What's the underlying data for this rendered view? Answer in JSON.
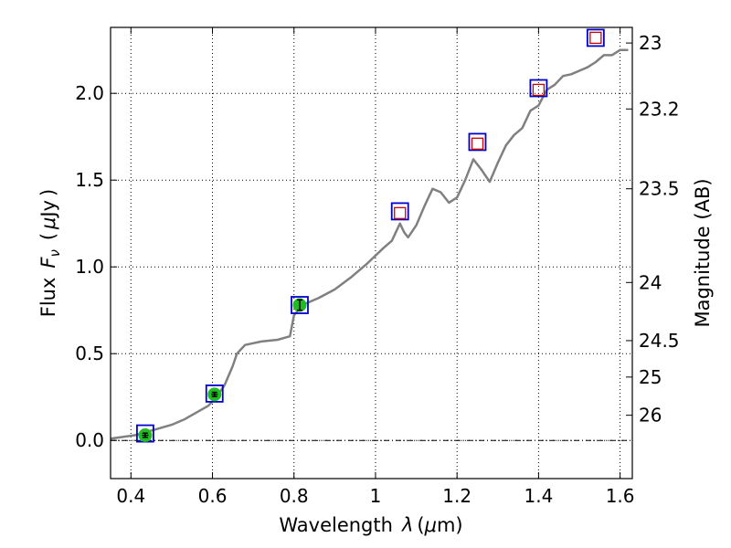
{
  "chart_data": {
    "type": "scatter",
    "xlabel": "Wavelength",
    "xlabel_symbol": "λ",
    "xlabel_unit_prefix": "μ",
    "xlabel_unit": "m",
    "ylabel": "Flux",
    "ylabel_symbol": "F",
    "ylabel_subscript": "ν",
    "ylabel_unit_prefix": "μ",
    "ylabel_unit": "Jy",
    "y2label": "Magnitude (AB)",
    "xlim": [
      0.35,
      1.63
    ],
    "ylim": [
      -0.22,
      2.38
    ],
    "xticks": [
      0.4,
      0.6,
      0.8,
      1.0,
      1.2,
      1.4,
      1.6
    ],
    "xtick_labels": [
      "0.4",
      "0.6",
      "0.8",
      "1",
      "1.2",
      "1.4",
      "1.6"
    ],
    "yticks": [
      0.0,
      0.5,
      1.0,
      1.5,
      2.0
    ],
    "ytick_labels": [
      "0.0",
      "0.5",
      "1.0",
      "1.5",
      "2.0"
    ],
    "magnitude_ticks": [
      {
        "label": "23",
        "flux": 2.29
      },
      {
        "label": "23.2",
        "flux": 1.91
      },
      {
        "label": "23.5",
        "flux": 1.45
      },
      {
        "label": "24",
        "flux": 0.91
      },
      {
        "label": "24.5",
        "flux": 0.575
      },
      {
        "label": "25",
        "flux": 0.365
      },
      {
        "label": "26",
        "flux": 0.145
      }
    ],
    "grid": true,
    "zero_line": 0.0,
    "colors": {
      "spectrum": "#808080",
      "model_marker": "#0000cc",
      "observed_fill": "#22bb22",
      "upper_limit_marker": "#cc0000",
      "grid": "#000000"
    },
    "series": [
      {
        "name": "model spectrum",
        "kind": "line",
        "points": [
          [
            0.35,
            0.01
          ],
          [
            0.38,
            0.02
          ],
          [
            0.41,
            0.03
          ],
          [
            0.44,
            0.05
          ],
          [
            0.47,
            0.07
          ],
          [
            0.5,
            0.09
          ],
          [
            0.53,
            0.12
          ],
          [
            0.56,
            0.16
          ],
          [
            0.59,
            0.2
          ],
          [
            0.61,
            0.25
          ],
          [
            0.63,
            0.32
          ],
          [
            0.65,
            0.43
          ],
          [
            0.66,
            0.5
          ],
          [
            0.68,
            0.55
          ],
          [
            0.72,
            0.57
          ],
          [
            0.76,
            0.58
          ],
          [
            0.79,
            0.6
          ],
          [
            0.8,
            0.72
          ],
          [
            0.82,
            0.78
          ],
          [
            0.86,
            0.82
          ],
          [
            0.9,
            0.87
          ],
          [
            0.94,
            0.94
          ],
          [
            0.98,
            1.02
          ],
          [
            1.02,
            1.11
          ],
          [
            1.04,
            1.15
          ],
          [
            1.06,
            1.25
          ],
          [
            1.07,
            1.2
          ],
          [
            1.08,
            1.17
          ],
          [
            1.1,
            1.24
          ],
          [
            1.12,
            1.35
          ],
          [
            1.14,
            1.45
          ],
          [
            1.16,
            1.43
          ],
          [
            1.18,
            1.37
          ],
          [
            1.2,
            1.4
          ],
          [
            1.22,
            1.5
          ],
          [
            1.24,
            1.62
          ],
          [
            1.26,
            1.56
          ],
          [
            1.28,
            1.49
          ],
          [
            1.3,
            1.6
          ],
          [
            1.32,
            1.7
          ],
          [
            1.34,
            1.76
          ],
          [
            1.36,
            1.8
          ],
          [
            1.38,
            1.9
          ],
          [
            1.4,
            1.93
          ],
          [
            1.42,
            2.02
          ],
          [
            1.44,
            2.05
          ],
          [
            1.46,
            2.1
          ],
          [
            1.48,
            2.11
          ],
          [
            1.5,
            2.13
          ],
          [
            1.52,
            2.15
          ],
          [
            1.54,
            2.18
          ],
          [
            1.56,
            2.22
          ],
          [
            1.58,
            2.22
          ],
          [
            1.6,
            2.25
          ],
          [
            1.62,
            2.25
          ]
        ]
      },
      {
        "name": "model photometry",
        "kind": "open-square",
        "points": [
          [
            0.435,
            0.04
          ],
          [
            0.605,
            0.27
          ],
          [
            0.814,
            0.78
          ],
          [
            1.06,
            1.32
          ],
          [
            1.25,
            1.72
          ],
          [
            1.4,
            2.03
          ],
          [
            1.54,
            2.32
          ]
        ]
      },
      {
        "name": "observed photometry",
        "kind": "filled-circle-errorbar",
        "points": [
          {
            "x": 0.435,
            "y": 0.03,
            "yerr": 0.012,
            "xerr": 0.008
          },
          {
            "x": 0.605,
            "y": 0.265,
            "yerr": 0.012,
            "xerr": 0.008
          },
          {
            "x": 0.814,
            "y": 0.78,
            "yerr": 0.03,
            "xerr": 0.0
          }
        ]
      },
      {
        "name": "upper limits",
        "kind": "open-square-small",
        "points": [
          [
            1.06,
            1.31
          ],
          [
            1.25,
            1.71
          ],
          [
            1.4,
            2.02
          ],
          [
            1.54,
            2.32
          ]
        ]
      }
    ]
  }
}
